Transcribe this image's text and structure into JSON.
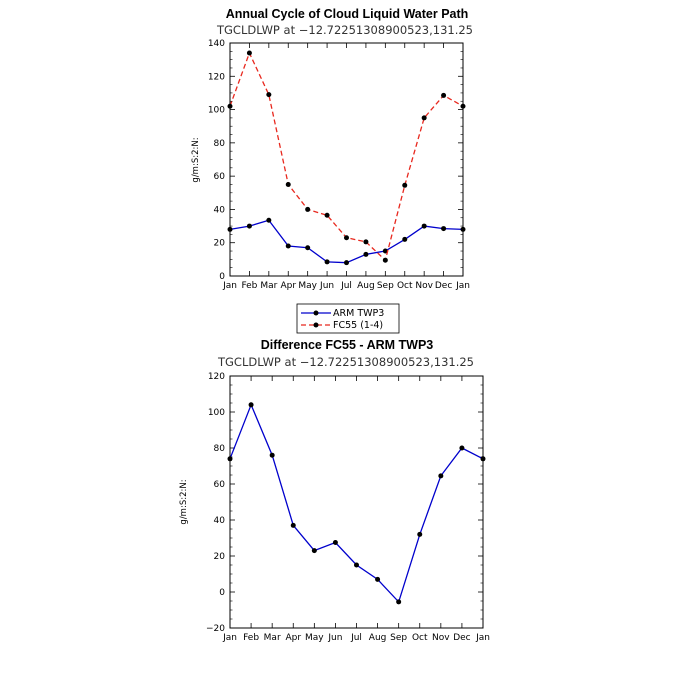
{
  "chart_data": [
    {
      "type": "line",
      "title": "Annual Cycle of Cloud Liquid Water Path",
      "subtitle": "TGCLDLWP at −12.72251308900523,131.25",
      "xlabel": "",
      "ylabel": "g/m:S:2:N:",
      "categories": [
        "Jan",
        "Feb",
        "Mar",
        "Apr",
        "May",
        "Jun",
        "Jul",
        "Aug",
        "Sep",
        "Oct",
        "Nov",
        "Dec",
        "Jan"
      ],
      "ylim": [
        0,
        140
      ],
      "yticks": [
        0,
        20,
        40,
        60,
        80,
        100,
        120,
        140
      ],
      "series": [
        {
          "name": "ARM TWP3",
          "color": "#0000cc",
          "style": "solid",
          "values": [
            28,
            30,
            33.5,
            18,
            17,
            8.5,
            8,
            13,
            15,
            22,
            30,
            28.5,
            28
          ]
        },
        {
          "name": "FC55 (1-4)",
          "color": "#e8281e",
          "style": "dashed",
          "values": [
            102,
            134,
            109,
            55,
            40,
            36.5,
            23,
            20.5,
            9.5,
            54.5,
            95,
            108.5,
            102
          ]
        }
      ],
      "legend": "below"
    },
    {
      "type": "line",
      "title": "Difference FC55 - ARM TWP3",
      "subtitle": "TGCLDLWP at −12.72251308900523,131.25",
      "xlabel": "",
      "ylabel": "g/m:S:2:N:",
      "categories": [
        "Jan",
        "Feb",
        "Mar",
        "Apr",
        "May",
        "Jun",
        "Jul",
        "Aug",
        "Sep",
        "Oct",
        "Nov",
        "Dec",
        "Jan"
      ],
      "ylim": [
        -20,
        120
      ],
      "yticks": [
        -20,
        0,
        20,
        40,
        60,
        80,
        100,
        120
      ],
      "series": [
        {
          "name": "Difference",
          "color": "#0000cc",
          "style": "solid",
          "values": [
            74,
            104,
            76,
            37,
            23,
            27.5,
            15,
            7,
            -5.5,
            32,
            64.5,
            80,
            74
          ]
        }
      ]
    }
  ]
}
